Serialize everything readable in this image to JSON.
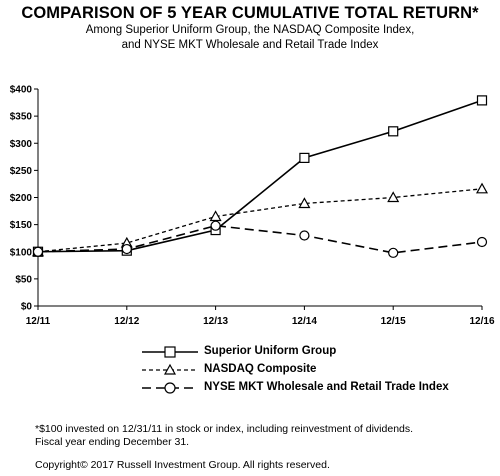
{
  "header": {
    "title": "COMPARISON OF 5 YEAR CUMULATIVE TOTAL RETURN*",
    "subtitle_line1": "Among Superior Uniform Group, the NASDAQ Composite Index,",
    "subtitle_line2": "and NYSE MKT Wholesale and Retail Trade Index"
  },
  "chart_data": {
    "type": "line",
    "title": "COMPARISON OF 5 YEAR CUMULATIVE TOTAL RETURN*",
    "categories": [
      "12/11",
      "12/12",
      "12/13",
      "12/14",
      "12/15",
      "12/16"
    ],
    "ylim": [
      0,
      400
    ],
    "yticks": [
      0,
      50,
      100,
      150,
      200,
      250,
      300,
      350,
      400
    ],
    "ytick_labels": [
      "$0",
      "$50",
      "$100",
      "$150",
      "$200",
      "$250",
      "$300",
      "$350",
      "$400"
    ],
    "grid": false,
    "legend_position": "bottom",
    "series": [
      {
        "name": "Superior Uniform Group",
        "marker": "square",
        "line_style": "solid",
        "values": [
          100,
          102,
          140,
          273,
          322,
          379
        ]
      },
      {
        "name": "NASDAQ Composite",
        "marker": "triangle",
        "line_style": "dashed",
        "values": [
          100,
          116,
          165,
          189,
          200,
          216
        ]
      },
      {
        "name": "NYSE MKT Wholesale and Retail Trade Index",
        "marker": "circle",
        "line_style": "longdash",
        "values": [
          100,
          105,
          148,
          130,
          98,
          118
        ]
      }
    ]
  },
  "footnote": {
    "line1": "*$100 invested on 12/31/11 in stock or index, including reinvestment of dividends.",
    "line2": "Fiscal year ending December 31."
  },
  "copyright": "Copyright© 2017 Russell Investment Group. All rights reserved."
}
